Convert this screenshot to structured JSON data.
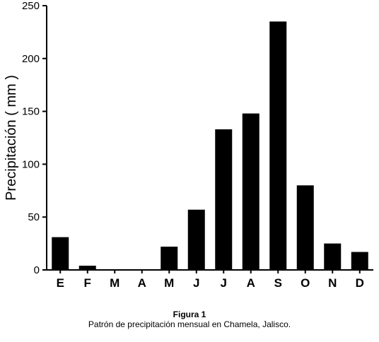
{
  "chart_data": {
    "type": "bar",
    "categories": [
      "E",
      "F",
      "M",
      "A",
      "M",
      "J",
      "J",
      "A",
      "S",
      "O",
      "N",
      "D"
    ],
    "values": [
      31,
      4,
      0,
      0,
      22,
      57,
      133,
      148,
      235,
      80,
      25,
      17
    ],
    "ylabel": "Precipitación ( mm )",
    "xlabel": "",
    "ylim": [
      0,
      250
    ],
    "yticks": [
      0,
      50,
      100,
      150,
      200,
      250
    ],
    "grid": false,
    "bar_color": "#000000"
  },
  "caption": {
    "title": "Figura 1",
    "text": "Patrón de precipitación mensual en Chamela, Jalisco."
  }
}
